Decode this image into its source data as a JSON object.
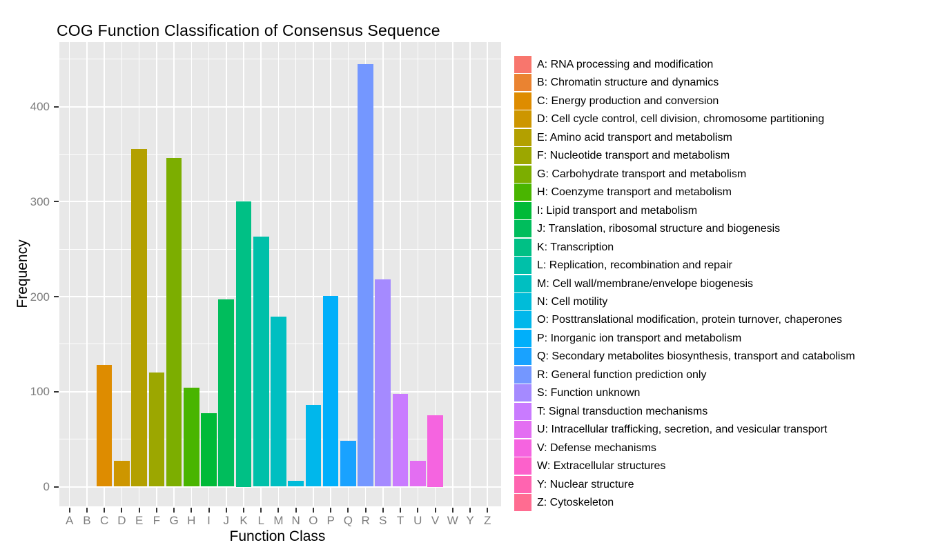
{
  "chart_data": {
    "type": "bar",
    "title": "COG Function Classification of Consensus Sequence",
    "xlabel": "Function Class",
    "ylabel": "Frequency",
    "legend_position": "right",
    "grid": true,
    "panel_background": "#E8E8E8",
    "grid_color": "#FFFFFF",
    "axis_text_color": "#7F7F7F",
    "axis_title_color": "#000000",
    "tick_mark_color": "#333333",
    "ylim": [
      0,
      468
    ],
    "y_major_ticks": [
      0,
      100,
      200,
      300,
      400
    ],
    "y_minor_ticks": [
      50,
      150,
      250,
      350,
      450
    ],
    "categories": [
      "A",
      "B",
      "C",
      "D",
      "E",
      "F",
      "G",
      "H",
      "I",
      "J",
      "K",
      "L",
      "M",
      "N",
      "O",
      "P",
      "Q",
      "R",
      "S",
      "T",
      "U",
      "V",
      "W",
      "Y",
      "Z"
    ],
    "values": [
      0,
      0,
      128,
      27,
      355,
      120,
      346,
      104,
      77,
      197,
      300,
      263,
      179,
      6,
      86,
      201,
      48,
      445,
      218,
      98,
      27,
      75,
      0,
      0,
      0
    ],
    "colors": [
      "#F8766D",
      "#EA8331",
      "#DE8C00",
      "#CD9600",
      "#B3A000",
      "#9CA700",
      "#7CAE00",
      "#49B500",
      "#00BA38",
      "#00BD5C",
      "#00C085",
      "#00C0A9",
      "#00BFC1",
      "#00BCD9",
      "#00B7EB",
      "#00AFFA",
      "#19A2FF",
      "#7497FF",
      "#A58AFF",
      "#C97BFF",
      "#E36EF2",
      "#F564E0",
      "#FC61CB",
      "#FF64B0",
      "#FF6C91"
    ],
    "legend_labels": [
      "A: RNA processing and modification",
      "B: Chromatin structure and dynamics",
      "C: Energy production and conversion",
      "D: Cell cycle control, cell division, chromosome partitioning",
      "E: Amino acid transport and metabolism",
      "F: Nucleotide transport and metabolism",
      "G: Carbohydrate transport and metabolism",
      "H: Coenzyme transport and metabolism",
      "I: Lipid transport and metabolism",
      "J: Translation, ribosomal structure and biogenesis",
      "K: Transcription",
      "L: Replication, recombination and repair",
      "M: Cell wall/membrane/envelope biogenesis",
      "N: Cell motility",
      "O: Posttranslational modification, protein turnover, chaperones",
      "P: Inorganic ion transport and metabolism",
      "Q: Secondary metabolites biosynthesis, transport and catabolism",
      "R: General function prediction only",
      "S: Function unknown",
      "T: Signal transduction mechanisms",
      "U: Intracellular trafficking, secretion, and vesicular transport",
      "V: Defense mechanisms",
      "W: Extracellular structures",
      "Y: Nuclear structure",
      "Z: Cytoskeleton"
    ]
  }
}
